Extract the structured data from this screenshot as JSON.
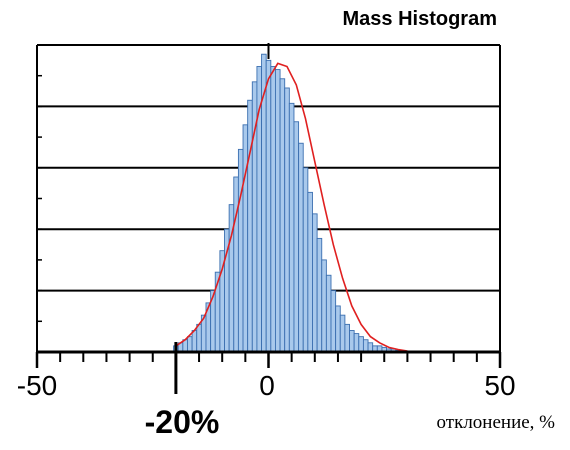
{
  "chart_data": {
    "type": "histogram",
    "title": "Mass Histogram",
    "xlabel": "отклонение, %",
    "ylabel": "",
    "xlim": [
      -50,
      50
    ],
    "ylim": [
      0,
      100
    ],
    "grid": "horizontal",
    "x_tick_labels": [
      "-50",
      "0",
      "50"
    ],
    "annotation": "-20%",
    "annotation_x": -20,
    "colors": {
      "bar_fill": "#a9c9ec",
      "bar_edge": "#3b6fb0",
      "fit_curve": "#e02020",
      "axis": "#000000"
    },
    "bin_width": 1,
    "series": [
      {
        "type": "bars",
        "x": [
          -20,
          -19,
          -18,
          -17,
          -16,
          -15,
          -14,
          -13,
          -12,
          -11,
          -10,
          -9,
          -8,
          -7,
          -6,
          -5,
          -4,
          -3,
          -2,
          -1,
          0,
          1,
          2,
          3,
          4,
          5,
          6,
          7,
          8,
          9,
          10,
          11,
          12,
          13,
          14,
          15,
          16,
          17,
          18,
          19,
          20,
          21,
          22,
          23,
          24,
          25,
          26,
          27,
          28,
          29,
          30
        ],
        "values": [
          2,
          3,
          4,
          5,
          7,
          9,
          12,
          16,
          20,
          26,
          33,
          40,
          48,
          57,
          66,
          74,
          82,
          88,
          93,
          97,
          95,
          93,
          92,
          89,
          86,
          81,
          75,
          68,
          60,
          52,
          45,
          37,
          30,
          25,
          20,
          15,
          12,
          9,
          7,
          6,
          5,
          4,
          3,
          2,
          2,
          1.5,
          1,
          1,
          0.5,
          0.5,
          0.3
        ]
      },
      {
        "type": "line",
        "x": [
          -20,
          -18,
          -16,
          -14,
          -12,
          -10,
          -8,
          -6,
          -4,
          -2,
          0,
          2,
          4,
          6,
          8,
          10,
          12,
          14,
          16,
          18,
          20,
          22,
          24,
          26,
          28,
          30
        ],
        "values": [
          2,
          4,
          7,
          11,
          18,
          27,
          38,
          51,
          65,
          79,
          89,
          94,
          93,
          87,
          76,
          62,
          48,
          35,
          24,
          15,
          9,
          5,
          3,
          1.5,
          0.8,
          0.3
        ]
      }
    ]
  }
}
